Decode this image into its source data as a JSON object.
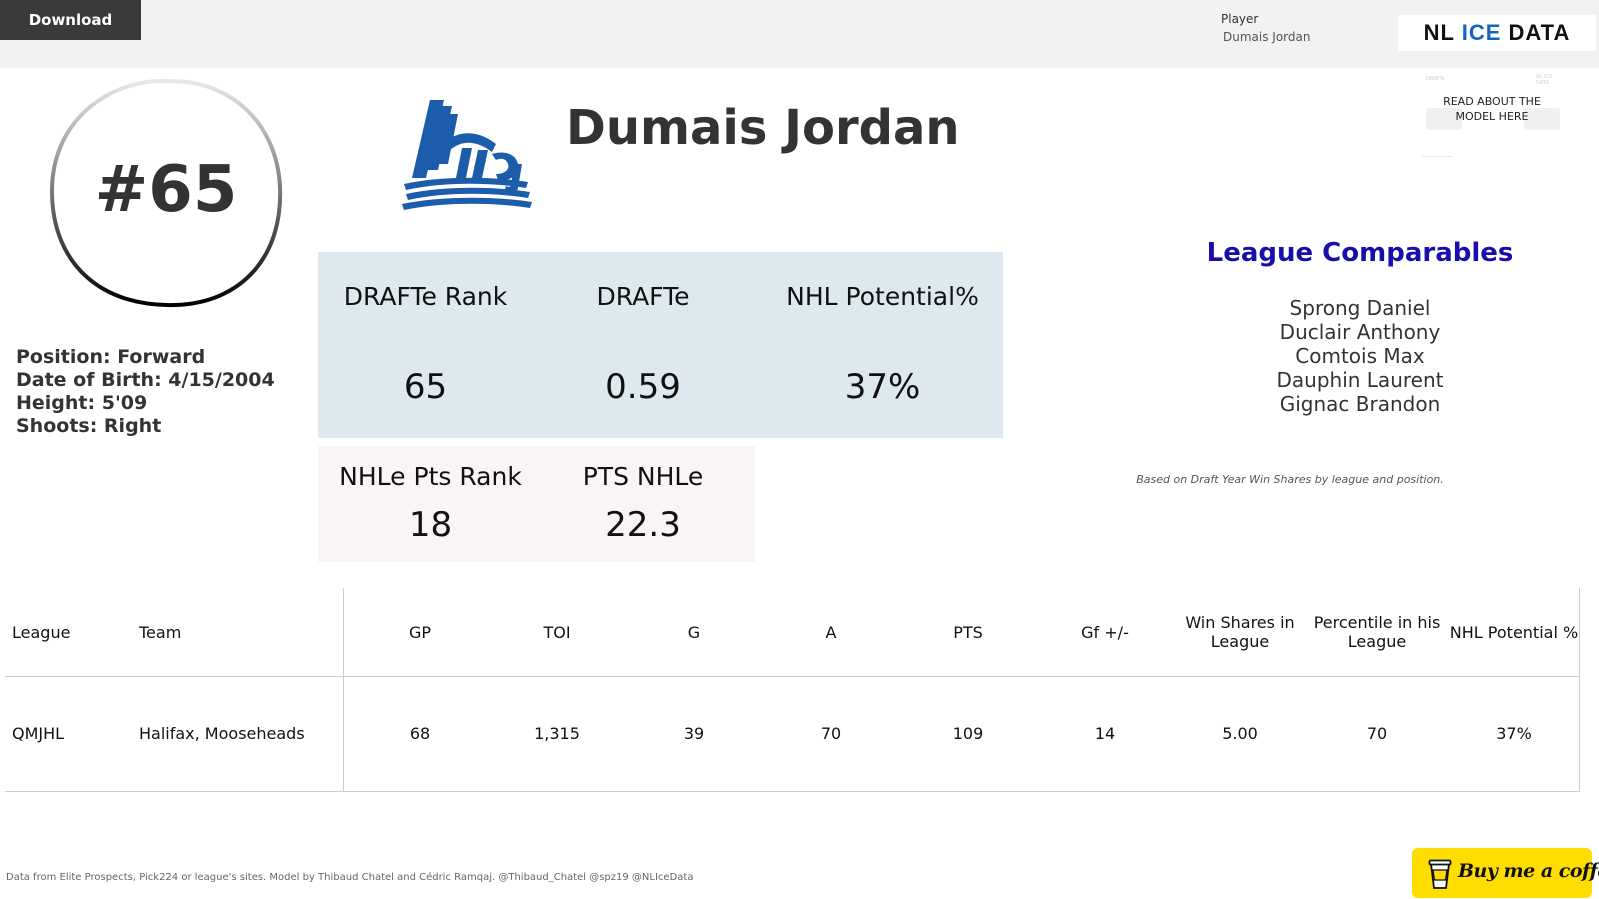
{
  "toolbar": {
    "download_label": "Download"
  },
  "filter": {
    "label": "Player",
    "value": "Dumais Jordan"
  },
  "brand": {
    "logo_part1": "NL",
    "logo_part2": "ICE",
    "logo_part3": "DATA",
    "accent": "#1565c0"
  },
  "player": {
    "number": "#65",
    "name": "Dumais Jordan",
    "position": "Position: Forward",
    "dob": "Date of Birth: 4/15/2004",
    "height": "Height: 5'09",
    "shoots": "Shoots: Right"
  },
  "league_logo": {
    "text": "LHJMQ",
    "color": "#1b5cab"
  },
  "model_link": {
    "label": "READ ABOUT THE MODEL HERE"
  },
  "draft_stats": [
    {
      "label": "DRAFTe Rank",
      "value": "65"
    },
    {
      "label": "DRAFTe",
      "value": "0.59"
    },
    {
      "label": "NHL Potential%",
      "value": "37%"
    }
  ],
  "nhle_stats": [
    {
      "label": "NHLe Pts Rank",
      "value": "18"
    },
    {
      "label": "PTS NHLe",
      "value": "22.3"
    }
  ],
  "comparables": {
    "title": "League Comparables",
    "players": [
      "Sprong Daniel",
      "Duclair Anthony",
      "Comtois Max",
      "Dauphin Laurent",
      "Gignac Brandon"
    ],
    "note": "Based on Draft Year Win Shares by league and position."
  },
  "table": {
    "headers": [
      "League",
      "Team",
      "GP",
      "TOI",
      "G",
      "A",
      "PTS",
      "Gf +/-",
      "Win Shares in League",
      "Percentile in his League",
      "NHL Potential %"
    ],
    "rows": [
      [
        "QMJHL",
        "Halifax, Mooseheads",
        "68",
        "1,315",
        "39",
        "70",
        "109",
        "14",
        "5.00",
        "70",
        "37%"
      ]
    ]
  },
  "footer": {
    "note": "Data from Elite Prospects, Pick224 or league's sites. Model by Thibaud Chatel and Cédric Ramqaj. @Thibaud_Chatel @spz19 @NLIceData",
    "coffee_label": "Buy me a coffee"
  },
  "colors": {
    "stat_box_blue": "#dde9ee",
    "stat_box_pink": "#faf4f7",
    "comparables_title": "#1a0dab",
    "coffee": "#ffdd00"
  }
}
